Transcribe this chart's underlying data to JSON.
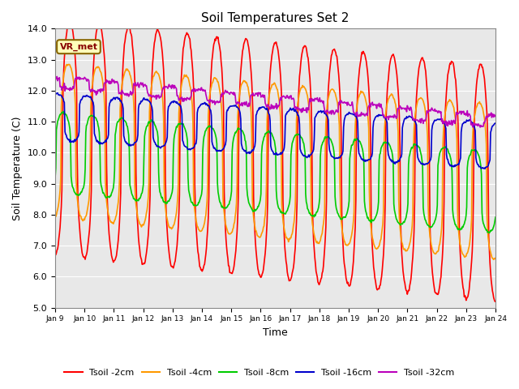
{
  "title": "Soil Temperatures Set 2",
  "xlabel": "Time",
  "ylabel": "Soil Temperature (C)",
  "ylim": [
    5.0,
    14.0
  ],
  "yticks": [
    5.0,
    6.0,
    7.0,
    8.0,
    9.0,
    10.0,
    11.0,
    12.0,
    13.0,
    14.0
  ],
  "xticklabels": [
    "Jan 9",
    "Jan 10",
    "Jan 11",
    "Jan 12",
    "Jan 13",
    "Jan 14",
    "Jan 15",
    "Jan 16",
    "Jan 17",
    "Jan 18",
    "Jan 19",
    "Jan 20",
    "Jan 21",
    "Jan 22",
    "Jan 23",
    "Jan 24"
  ],
  "annotation_text": "VR_met",
  "legend_labels": [
    "Tsoil -2cm",
    "Tsoil -4cm",
    "Tsoil -8cm",
    "Tsoil -16cm",
    "Tsoil -32cm"
  ],
  "line_colors": [
    "#ff0000",
    "#ff9900",
    "#00cc00",
    "#0000cc",
    "#bb00bb"
  ],
  "bg_color": "#e8e8e8",
  "fig_color": "#ffffff",
  "n_days": 15
}
